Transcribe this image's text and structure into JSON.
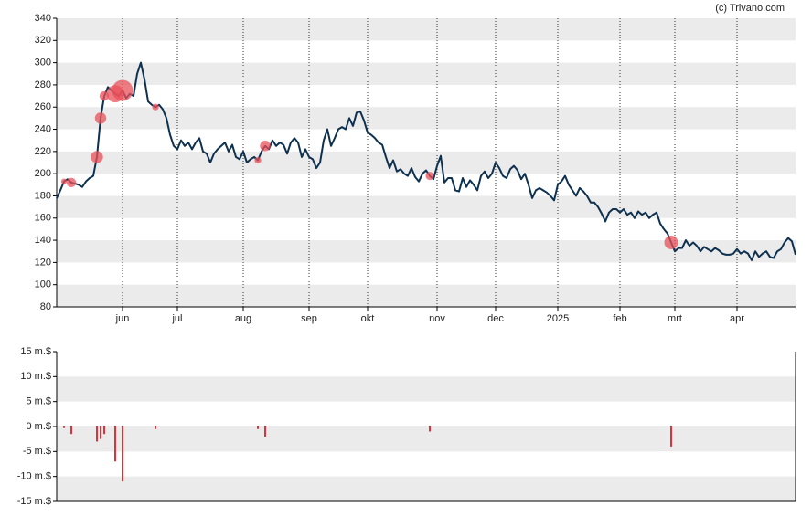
{
  "credit": "(c) Trivano.com",
  "chart_data": [
    {
      "type": "line",
      "color": "#0e3150",
      "ylim": [
        80,
        340
      ],
      "yticks": [
        80,
        100,
        120,
        140,
        160,
        180,
        200,
        220,
        240,
        260,
        280,
        300,
        320,
        340
      ],
      "grid": "bands",
      "month_lines": true,
      "categories": [
        null,
        null,
        null,
        null,
        null,
        null,
        null,
        null,
        null,
        null,
        null,
        null,
        null,
        null,
        null,
        null,
        null,
        null,
        "jun",
        null,
        null,
        null,
        null,
        null,
        null,
        null,
        null,
        null,
        null,
        null,
        null,
        null,
        null,
        "jul",
        null,
        null,
        null,
        null,
        null,
        null,
        null,
        null,
        null,
        null,
        null,
        null,
        null,
        null,
        null,
        null,
        null,
        "aug",
        null,
        null,
        null,
        null,
        null,
        null,
        null,
        null,
        null,
        null,
        null,
        null,
        null,
        null,
        null,
        null,
        null,
        "sep",
        null,
        null,
        null,
        null,
        null,
        null,
        null,
        null,
        null,
        null,
        null,
        null,
        null,
        null,
        null,
        "okt",
        null,
        null,
        null,
        null,
        null,
        null,
        null,
        null,
        null,
        null,
        null,
        null,
        null,
        null,
        null,
        null,
        null,
        null,
        "nov",
        null,
        null,
        null,
        null,
        null,
        null,
        null,
        null,
        null,
        null,
        null,
        null,
        null,
        null,
        null,
        "dec",
        null,
        null,
        null,
        null,
        null,
        null,
        null,
        null,
        null,
        null,
        null,
        null,
        null,
        null,
        null,
        null,
        "2025",
        null,
        null,
        null,
        null,
        null,
        null,
        null,
        null,
        null,
        null,
        null,
        null,
        null,
        null,
        null,
        null,
        "feb",
        null,
        null,
        null,
        null,
        null,
        null,
        null,
        null,
        null,
        null,
        null,
        null,
        null,
        null,
        "mrt",
        null,
        null,
        null,
        null,
        null,
        null,
        null,
        null,
        null,
        null,
        null,
        null,
        null,
        null,
        null,
        null,
        "apr",
        null,
        null,
        null,
        null,
        null,
        null,
        null,
        null,
        null,
        null,
        null,
        null,
        null,
        null,
        null,
        null
      ],
      "values": [
        178,
        185,
        193,
        195,
        192,
        191,
        190,
        188,
        193,
        196,
        198,
        215,
        250,
        270,
        278,
        275,
        272,
        270,
        275,
        268,
        272,
        270,
        290,
        300,
        285,
        265,
        262,
        260,
        262,
        258,
        250,
        235,
        225,
        222,
        230,
        225,
        228,
        222,
        228,
        232,
        220,
        218,
        210,
        218,
        222,
        225,
        228,
        220,
        226,
        215,
        213,
        220,
        210,
        213,
        215,
        212,
        220,
        225,
        222,
        230,
        225,
        228,
        226,
        218,
        228,
        232,
        228,
        215,
        222,
        215,
        213,
        205,
        210,
        230,
        240,
        225,
        232,
        240,
        242,
        240,
        250,
        243,
        255,
        256,
        248,
        237,
        235,
        232,
        228,
        226,
        215,
        205,
        212,
        202,
        204,
        200,
        198,
        205,
        197,
        193,
        200,
        203,
        198,
        195,
        207,
        216,
        192,
        196,
        196,
        185,
        184,
        196,
        188,
        194,
        190,
        185,
        198,
        202,
        196,
        200,
        210,
        205,
        198,
        196,
        204,
        207,
        203,
        195,
        200,
        190,
        178,
        185,
        187,
        185,
        183,
        180,
        176,
        190,
        193,
        198,
        190,
        185,
        180,
        187,
        184,
        180,
        174,
        174,
        170,
        164,
        157,
        165,
        168,
        168,
        165,
        168,
        163,
        165,
        160,
        166,
        163,
        165,
        160,
        163,
        165,
        155,
        150,
        146,
        138,
        130,
        133,
        133,
        140,
        135,
        138,
        135,
        130,
        134,
        132,
        130,
        133,
        131,
        128,
        127,
        127,
        128,
        132,
        128,
        130,
        128,
        122,
        130,
        125,
        128,
        130,
        125,
        124,
        130,
        132,
        138,
        142,
        139,
        127
      ]
    },
    {
      "type": "bar",
      "color": "#e0303a",
      "marker_color": "#e8505a",
      "ylim": [
        -15,
        15
      ],
      "yticks": [
        {
          "value": -15,
          "label": "-15 m.$"
        },
        {
          "value": -10,
          "label": "-10 m.$"
        },
        {
          "value": -5,
          "label": "-5 m.$"
        },
        {
          "value": 0,
          "label": "0 m.$"
        },
        {
          "value": 5,
          "label": "5 m.$"
        },
        {
          "value": 10,
          "label": "10 m.$"
        },
        {
          "value": 15,
          "label": "15 m.$"
        }
      ],
      "grid": "bands",
      "values": [
        null,
        null,
        -0.3,
        null,
        -1.5,
        null,
        null,
        null,
        null,
        null,
        null,
        -3,
        -2.5,
        -1.5,
        null,
        null,
        -7,
        null,
        -11,
        null,
        null,
        null,
        null,
        null,
        null,
        null,
        null,
        -0.5,
        null,
        null,
        null,
        null,
        null,
        null,
        null,
        null,
        null,
        null,
        null,
        null,
        null,
        null,
        null,
        null,
        null,
        null,
        null,
        null,
        null,
        null,
        null,
        null,
        null,
        null,
        null,
        -0.5,
        null,
        -2,
        null,
        null,
        null,
        null,
        null,
        null,
        null,
        null,
        null,
        null,
        null,
        null,
        null,
        null,
        null,
        null,
        null,
        null,
        null,
        null,
        null,
        null,
        null,
        null,
        null,
        null,
        null,
        null,
        null,
        null,
        null,
        null,
        null,
        null,
        null,
        null,
        null,
        null,
        null,
        null,
        null,
        null,
        null,
        null,
        -1,
        null,
        null,
        null,
        null,
        null,
        null,
        null,
        null,
        null,
        null,
        null,
        null,
        null,
        null,
        null,
        null,
        null,
        null,
        null,
        null,
        null,
        null,
        null,
        null,
        null,
        null,
        null,
        null,
        null,
        null,
        null,
        null,
        null,
        null,
        null,
        null,
        null,
        null,
        null,
        null,
        null,
        null,
        null,
        null,
        null,
        null,
        null,
        null,
        null,
        null,
        null,
        null,
        null,
        null,
        null,
        null,
        null,
        null,
        null,
        null,
        null,
        null,
        null,
        null,
        null,
        -4,
        null,
        null,
        null,
        null,
        null,
        null,
        null,
        null,
        null,
        null,
        null,
        null,
        null,
        null,
        null,
        null,
        null,
        null,
        null,
        null,
        null,
        null,
        null,
        null,
        null,
        null,
        null,
        null,
        null,
        null,
        null,
        null,
        null,
        null
      ]
    }
  ]
}
